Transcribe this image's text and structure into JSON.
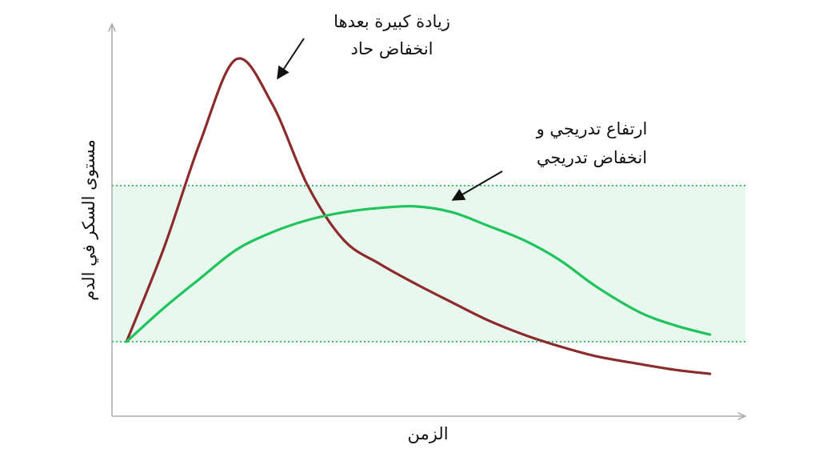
{
  "chart_data": {
    "type": "line",
    "x_label": "الزمن",
    "y_label": "مستوى السكر في الدم",
    "xlim": [
      0,
      100
    ],
    "ylim": [
      0,
      100
    ],
    "x": [
      2.3,
      8.2,
      13.9,
      19.6,
      25.3,
      30.9,
      36.6,
      42.3,
      48.0,
      53.7,
      59.3,
      65.0,
      70.7,
      76.4,
      83.3,
      89.0,
      94.4
    ],
    "band": [
      19.0,
      58.8
    ],
    "band_color": "#e9f8ee",
    "band_edge_color": "#22b85a",
    "series": [
      {
        "color": "#8b2b2b",
        "values": [
          19.0,
          42.9,
          69.8,
          91.0,
          79.6,
          58.8,
          44.9,
          38.8,
          33.7,
          29.0,
          24.5,
          20.8,
          17.8,
          15.3,
          13.3,
          11.8,
          10.8
        ]
      },
      {
        "color": "#1fc45c",
        "values": [
          19.0,
          27.6,
          35.1,
          42.4,
          46.9,
          50.0,
          52.0,
          53.1,
          53.5,
          52.0,
          48.6,
          44.9,
          39.8,
          33.1,
          26.5,
          23.1,
          20.8
        ]
      }
    ],
    "annotations": [
      {
        "lines": [
          "زيادة كبيرة بعدها",
          "انخفاض حاد"
        ]
      },
      {
        "lines": [
          "ارتفاع تدريجي و",
          "انخفاض تدريجي"
        ]
      }
    ]
  }
}
